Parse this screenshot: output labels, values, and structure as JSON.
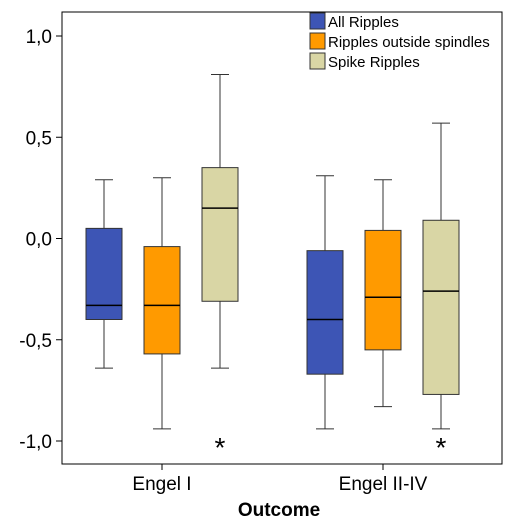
{
  "chart_data": {
    "type": "boxplot",
    "title": "",
    "xlabel": "Outcome",
    "ylabel": "",
    "ylim": [
      -1.1,
      1.1
    ],
    "yticks": [
      -1.0,
      -0.5,
      0.0,
      0.5,
      1.0
    ],
    "ytick_labels": [
      "-1,0",
      "-0,5",
      "0,0",
      "0,5",
      "1,0"
    ],
    "categories": [
      "Engel I",
      "Engel II-IV"
    ],
    "grid": false,
    "legend_position": "top-right",
    "series": [
      {
        "name": "All Ripples",
        "color": "#3d55b5",
        "boxes": [
          {
            "min": -0.64,
            "q1": -0.4,
            "median": -0.33,
            "q3": 0.05,
            "max": 0.29
          },
          {
            "min": -0.94,
            "q1": -0.67,
            "median": -0.4,
            "q3": -0.06,
            "max": 0.31
          }
        ],
        "outliers": [
          [],
          []
        ]
      },
      {
        "name": "Ripples outside spindles",
        "color": "#ff9a00",
        "boxes": [
          {
            "min": -0.94,
            "q1": -0.57,
            "median": -0.33,
            "q3": -0.04,
            "max": 0.3
          },
          {
            "min": -0.83,
            "q1": -0.55,
            "median": -0.29,
            "q3": 0.04,
            "max": 0.29
          }
        ],
        "outliers": [
          [],
          []
        ]
      },
      {
        "name": "Spike Ripples",
        "color": "#d9d6a5",
        "boxes": [
          {
            "min": -0.64,
            "q1": -0.31,
            "median": 0.15,
            "q3": 0.35,
            "max": 0.81
          },
          {
            "min": -0.94,
            "q1": -0.77,
            "median": -0.26,
            "q3": 0.09,
            "max": 0.57
          }
        ],
        "outliers": [
          [
            "*"
          ],
          [
            "*"
          ]
        ],
        "outlier_values": [
          [
            -1.0
          ],
          [
            -1.0
          ]
        ]
      }
    ]
  }
}
